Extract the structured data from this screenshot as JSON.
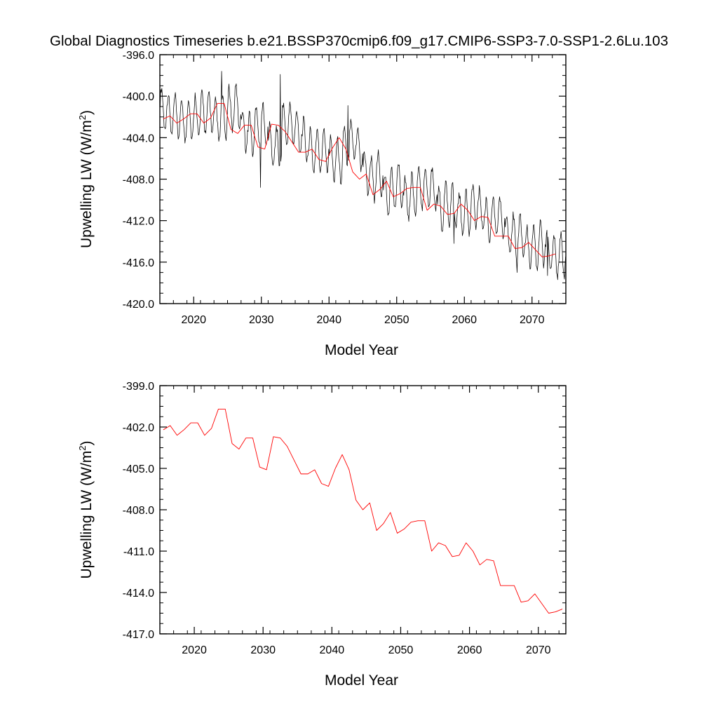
{
  "figure": {
    "title": "Global Diagnostics Timeseries b.e21.BSSP370cmip6.f09_g17.CMIP6-SSP3-7.0-SSP1-2.6Lu.103"
  },
  "chart_data": [
    {
      "type": "line",
      "title": "",
      "xlabel": "Model Year",
      "ylabel_main": "Upwelling LW (W/m",
      "ylabel_sup": "2",
      "ylabel_end": ")",
      "xlim": [
        2015,
        2075
      ],
      "ylim": [
        -420.0,
        -396.0
      ],
      "x_ticks": [
        2020,
        2030,
        2040,
        2050,
        2060,
        2070
      ],
      "x_tick_labels": [
        "2020",
        "2030",
        "2040",
        "2050",
        "2060",
        "2070"
      ],
      "y_ticks": [
        -420.0,
        -416.0,
        -412.0,
        -408.0,
        -404.0,
        -400.0,
        -396.0
      ],
      "y_tick_labels": [
        "-420.0",
        "-416.0",
        "-412.0",
        "-408.0",
        "-404.0",
        "-400.0",
        "-396.0"
      ],
      "grid": false,
      "series": [
        {
          "color": "#000000",
          "resolution": "monthly",
          "annual_mean": [
            -401.2,
            -401.8,
            -402.0,
            -402.4,
            -402.2,
            -401.9,
            -401.6,
            -401.6,
            -402.4,
            -402.0,
            -401.2,
            -401.0,
            -403.2,
            -403.6,
            -402.8,
            -402.8,
            -404.8,
            -405.0,
            -402.7,
            -402.8,
            -403.4,
            -404.3,
            -405.3,
            -405.3,
            -405.0,
            -406.0,
            -406.2,
            -405.0,
            -404.1,
            -405.0,
            -407.3,
            -408.0,
            -407.5,
            -409.5,
            -409.0,
            -408.4,
            -409.8,
            -409.5,
            -409.0,
            -408.8,
            -408.8,
            -411.0,
            -410.4,
            -410.6,
            -411.4,
            -411.3,
            -410.5,
            -411.0,
            -412.0,
            -411.6,
            -411.7,
            -413.5,
            -413.5,
            -413.5,
            -414.7,
            -414.6,
            -414.2,
            -414.8,
            -415.4,
            -415.3,
            -415.1
          ],
          "seasonal_amplitude": 2.0,
          "extremes": [
            {
              "x": 2024.1,
              "y": -397.6
            },
            {
              "x": 2032.8,
              "y": -397.9
            },
            {
              "x": 2029.9,
              "y": -408.8
            },
            {
              "x": 2042.8,
              "y": -400.9
            },
            {
              "x": 2058.5,
              "y": -414.2
            },
            {
              "x": 2067.8,
              "y": -417.0
            },
            {
              "x": 2072.3,
              "y": -417.3
            }
          ]
        },
        {
          "color": "#ff0000",
          "resolution": "annual",
          "x": [
            2015.5,
            2016.5,
            2017.5,
            2018.5,
            2019.5,
            2020.5,
            2021.5,
            2022.5,
            2023.5,
            2024.5,
            2025.5,
            2026.5,
            2027.5,
            2028.5,
            2029.5,
            2030.5,
            2031.5,
            2032.5,
            2033.5,
            2034.5,
            2035.5,
            2036.5,
            2037.5,
            2038.5,
            2039.5,
            2040.5,
            2041.5,
            2042.5,
            2043.5,
            2044.5,
            2045.5,
            2046.5,
            2047.5,
            2048.5,
            2049.5,
            2050.5,
            2051.5,
            2052.5,
            2053.5,
            2054.5,
            2055.5,
            2056.5,
            2057.5,
            2058.5,
            2059.5,
            2060.5,
            2061.5,
            2062.5,
            2063.5,
            2064.5,
            2065.5,
            2066.5,
            2067.5,
            2068.5,
            2069.5,
            2070.5,
            2071.5,
            2072.5,
            2073.5
          ],
          "y": [
            -402.2,
            -401.9,
            -402.6,
            -402.2,
            -401.7,
            -401.7,
            -402.6,
            -402.1,
            -400.7,
            -400.7,
            -403.2,
            -403.6,
            -402.8,
            -402.8,
            -404.9,
            -405.1,
            -402.7,
            -402.8,
            -403.4,
            -404.4,
            -405.4,
            -405.4,
            -405.1,
            -406.1,
            -406.3,
            -405.0,
            -404.0,
            -405.1,
            -407.3,
            -408.0,
            -407.5,
            -409.5,
            -409.0,
            -408.2,
            -409.7,
            -409.4,
            -408.9,
            -408.8,
            -408.8,
            -411.0,
            -410.4,
            -410.6,
            -411.4,
            -411.3,
            -410.4,
            -411.0,
            -412.0,
            -411.6,
            -411.7,
            -413.5,
            -413.5,
            -413.5,
            -414.7,
            -414.6,
            -414.1,
            -414.8,
            -415.5,
            -415.4,
            -415.2
          ]
        }
      ]
    },
    {
      "type": "line",
      "title": "",
      "xlabel": "Model Year",
      "ylabel_main": "Upwelling LW (W/m",
      "ylabel_sup": "2",
      "ylabel_end": ")",
      "xlim": [
        2015,
        2074
      ],
      "ylim": [
        -417.0,
        -399.0
      ],
      "x_ticks": [
        2020,
        2030,
        2040,
        2050,
        2060,
        2070
      ],
      "x_tick_labels": [
        "2020",
        "2030",
        "2040",
        "2050",
        "2060",
        "2070"
      ],
      "y_ticks": [
        -417.0,
        -414.0,
        -411.0,
        -408.0,
        -405.0,
        -402.0,
        -399.0
      ],
      "y_tick_labels": [
        "-417.0",
        "-414.0",
        "-411.0",
        "-408.0",
        "-405.0",
        "-402.0",
        "-399.0"
      ],
      "grid": false,
      "series": [
        {
          "color": "#ff0000",
          "resolution": "annual",
          "x": [
            2015.5,
            2016.5,
            2017.5,
            2018.5,
            2019.5,
            2020.5,
            2021.5,
            2022.5,
            2023.5,
            2024.5,
            2025.5,
            2026.5,
            2027.5,
            2028.5,
            2029.5,
            2030.5,
            2031.5,
            2032.5,
            2033.5,
            2034.5,
            2035.5,
            2036.5,
            2037.5,
            2038.5,
            2039.5,
            2040.5,
            2041.5,
            2042.5,
            2043.5,
            2044.5,
            2045.5,
            2046.5,
            2047.5,
            2048.5,
            2049.5,
            2050.5,
            2051.5,
            2052.5,
            2053.5,
            2054.5,
            2055.5,
            2056.5,
            2057.5,
            2058.5,
            2059.5,
            2060.5,
            2061.5,
            2062.5,
            2063.5,
            2064.5,
            2065.5,
            2066.5,
            2067.5,
            2068.5,
            2069.5,
            2070.5,
            2071.5,
            2072.5,
            2073.5
          ],
          "y": [
            -402.2,
            -401.9,
            -402.6,
            -402.2,
            -401.7,
            -401.7,
            -402.6,
            -402.1,
            -400.7,
            -400.7,
            -403.2,
            -403.6,
            -402.8,
            -402.8,
            -404.9,
            -405.1,
            -402.7,
            -402.8,
            -403.4,
            -404.4,
            -405.4,
            -405.4,
            -405.1,
            -406.1,
            -406.3,
            -405.0,
            -404.0,
            -405.1,
            -407.3,
            -408.0,
            -407.5,
            -409.5,
            -409.0,
            -408.2,
            -409.7,
            -409.4,
            -408.9,
            -408.8,
            -408.8,
            -411.0,
            -410.4,
            -410.6,
            -411.4,
            -411.3,
            -410.4,
            -411.0,
            -412.0,
            -411.6,
            -411.7,
            -413.5,
            -413.5,
            -413.5,
            -414.7,
            -414.6,
            -414.1,
            -414.8,
            -415.5,
            -415.4,
            -415.2
          ]
        }
      ]
    }
  ]
}
